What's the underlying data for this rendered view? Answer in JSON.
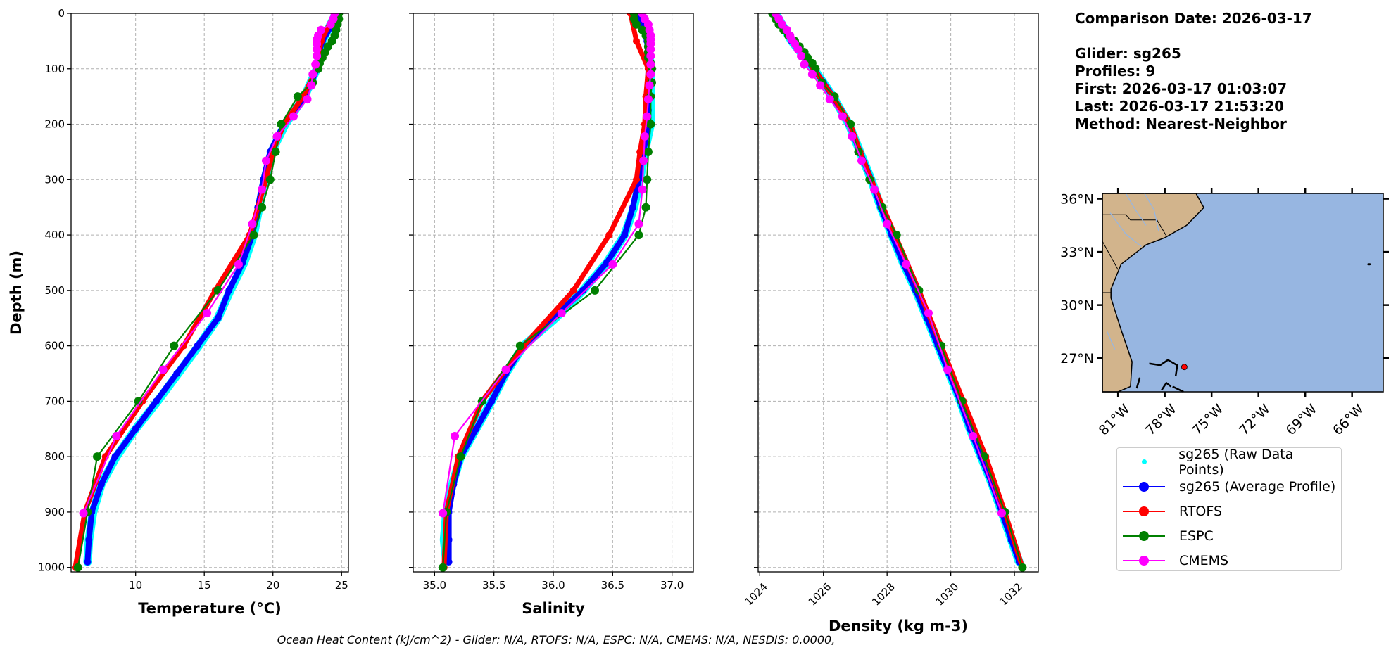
{
  "info": {
    "comparison_date": "Comparison Date: 2026-03-17",
    "glider": "Glider: sg265",
    "profiles": "Profiles: 9",
    "first": "First: 2026-03-17 01:03:07",
    "last": "Last: 2026-03-17 21:53:20",
    "method": "Method: Nearest-Neighbor"
  },
  "footer": "Ocean Heat Content (kJ/cm^2) - Glider: N/A,  RTOFS: N/A,  ESPC: N/A,  CMEMS: N/A,  NESDIS: 0.0000,",
  "legend": [
    {
      "label": "sg265 (Raw Data Points)",
      "color": "#00ffff",
      "style": "point"
    },
    {
      "label": "sg265 (Average Profile)",
      "color": "#0000ff",
      "style": "line-marker"
    },
    {
      "label": "RTOFS",
      "color": "#ff0000",
      "style": "line-marker"
    },
    {
      "label": "ESPC",
      "color": "#008000",
      "style": "line-marker"
    },
    {
      "label": "CMEMS",
      "color": "#ff00ff",
      "style": "line-marker"
    }
  ],
  "map": {
    "lat_ticks": [
      "36°N",
      "33°N",
      "30°N",
      "27°N"
    ],
    "lat_values": [
      36,
      33,
      30,
      27
    ],
    "lon_ticks": [
      "81°W",
      "78°W",
      "75°W",
      "72°W",
      "69°W",
      "66°W"
    ],
    "lon_values": [
      -81,
      -78,
      -75,
      -72,
      -69,
      -66
    ],
    "extent": {
      "lon": [
        -82,
        -64
      ],
      "lat": [
        25.1,
        36.3
      ]
    },
    "land_color": "#d2b48c",
    "ocean_color": "#97b6e1",
    "glider_position": {
      "lon": -76.75,
      "lat": 26.5,
      "color": "#ff0000"
    }
  },
  "chart_data": [
    {
      "type": "line",
      "id": "temperature",
      "xlabel": "Temperature (°C)",
      "ylabel": "Depth (m)",
      "xlim": [
        5.3,
        25.5
      ],
      "ylim": [
        1008,
        0
      ],
      "xticks": [
        10,
        15,
        20,
        25
      ],
      "xtick_labels": [
        "10",
        "15",
        "20",
        "25"
      ],
      "yticks": [
        0,
        100,
        200,
        300,
        400,
        500,
        600,
        700,
        800,
        900,
        1000
      ],
      "ytick_labels": [
        "0",
        "100",
        "200",
        "300",
        "400",
        "500",
        "600",
        "700",
        "800",
        "900",
        "1000"
      ],
      "grid": true,
      "series": [
        {
          "name": "sg265 (Raw Data Points)",
          "depth": [
            0,
            50,
            100,
            150,
            200,
            250,
            300,
            350,
            400,
            450,
            500,
            550,
            600,
            650,
            700,
            750,
            800,
            850,
            900,
            950,
            990
          ],
          "values": [
            24.6,
            23.6,
            23.2,
            22.3,
            20.9,
            19.9,
            19.4,
            19.0,
            18.6,
            17.9,
            16.9,
            16.0,
            14.6,
            13.1,
            11.6,
            10.0,
            8.6,
            7.5,
            6.9,
            6.6,
            6.5
          ]
        },
        {
          "name": "sg265 (Average Profile)",
          "depth": [
            0,
            25,
            50,
            75,
            100,
            125,
            150,
            175,
            200,
            250,
            300,
            350,
            400,
            450,
            500,
            550,
            600,
            650,
            700,
            750,
            800,
            850,
            900,
            950,
            990
          ],
          "values": [
            24.5,
            24.2,
            23.6,
            23.3,
            23.2,
            22.8,
            22.3,
            21.6,
            20.8,
            19.8,
            19.3,
            18.9,
            18.5,
            17.8,
            16.8,
            16.0,
            14.5,
            13.0,
            11.5,
            10.0,
            8.5,
            7.5,
            6.8,
            6.6,
            6.5
          ]
        },
        {
          "name": "RTOFS",
          "depth": [
            0,
            50,
            100,
            150,
            200,
            250,
            300,
            400,
            500,
            600,
            700,
            800,
            900,
            1000
          ],
          "values": [
            24.5,
            23.5,
            23.2,
            22.2,
            20.8,
            20.0,
            19.5,
            18.3,
            15.8,
            13.5,
            10.5,
            7.8,
            6.3,
            5.6
          ]
        },
        {
          "name": "ESPC",
          "depth": [
            0,
            10,
            20,
            30,
            40,
            50,
            60,
            70,
            80,
            90,
            100,
            125,
            150,
            200,
            250,
            300,
            350,
            400,
            500,
            600,
            700,
            800,
            900,
            1000
          ],
          "values": [
            24.8,
            24.8,
            24.7,
            24.6,
            24.5,
            24.3,
            24.0,
            23.8,
            23.6,
            23.4,
            23.3,
            22.9,
            21.8,
            20.6,
            20.2,
            19.8,
            19.2,
            18.6,
            16.0,
            12.8,
            10.2,
            7.2,
            6.5,
            5.8
          ]
        },
        {
          "name": "CMEMS",
          "depth": [
            0,
            10,
            20,
            30,
            40,
            47,
            55,
            65,
            77,
            92,
            110,
            130,
            155,
            186,
            222,
            266,
            318,
            380,
            453,
            541,
            643,
            763,
            902
          ],
          "values": [
            24.5,
            24.4,
            24.2,
            23.5,
            23.3,
            23.2,
            23.2,
            23.2,
            23.2,
            23.1,
            22.9,
            22.8,
            22.5,
            21.5,
            20.3,
            19.5,
            19.2,
            18.5,
            17.5,
            15.2,
            12.0,
            8.6,
            6.2
          ]
        }
      ]
    },
    {
      "type": "line",
      "id": "salinity",
      "xlabel": "Salinity",
      "ylabel": "",
      "xlim": [
        34.82,
        37.18
      ],
      "ylim": [
        1008,
        0
      ],
      "xticks": [
        35.0,
        35.5,
        36.0,
        36.5,
        37.0
      ],
      "xtick_labels": [
        "35.0",
        "35.5",
        "36.0",
        "36.5",
        "37.0"
      ],
      "yticks": [
        0,
        100,
        200,
        300,
        400,
        500,
        600,
        700,
        800,
        900,
        1000
      ],
      "grid": true,
      "series": [
        {
          "name": "sg265 (Raw Data Points)",
          "depth": [
            0,
            50,
            100,
            150,
            200,
            250,
            300,
            350,
            400,
            450,
            500,
            550,
            600,
            650,
            700,
            750,
            800,
            850,
            900,
            950,
            990
          ],
          "values": [
            36.74,
            36.8,
            36.82,
            36.82,
            36.82,
            36.77,
            36.73,
            36.68,
            36.6,
            36.45,
            36.25,
            36.02,
            35.75,
            35.6,
            35.48,
            35.35,
            35.22,
            35.15,
            35.1,
            35.08,
            35.1
          ]
        },
        {
          "name": "sg265 (Average Profile)",
          "depth": [
            0,
            25,
            50,
            75,
            100,
            125,
            150,
            175,
            200,
            250,
            300,
            350,
            400,
            450,
            500,
            550,
            600,
            650,
            700,
            750,
            800,
            850,
            900,
            950,
            990
          ],
          "values": [
            36.72,
            36.76,
            36.79,
            36.8,
            36.8,
            36.8,
            36.8,
            36.8,
            36.8,
            36.76,
            36.72,
            36.67,
            36.6,
            36.45,
            36.25,
            36.0,
            35.75,
            35.6,
            35.48,
            35.35,
            35.22,
            35.16,
            35.12,
            35.12,
            35.12
          ]
        },
        {
          "name": "RTOFS",
          "depth": [
            0,
            50,
            100,
            150,
            200,
            250,
            300,
            400,
            500,
            600,
            700,
            800,
            900,
            1000
          ],
          "values": [
            36.65,
            36.7,
            36.8,
            36.78,
            36.77,
            36.73,
            36.7,
            36.47,
            36.17,
            35.75,
            35.4,
            35.2,
            35.1,
            35.08
          ]
        },
        {
          "name": "ESPC",
          "depth": [
            0,
            10,
            20,
            30,
            40,
            50,
            60,
            70,
            80,
            90,
            100,
            125,
            150,
            200,
            250,
            300,
            350,
            400,
            500,
            600,
            700,
            800,
            900,
            1000
          ],
          "values": [
            36.68,
            36.68,
            36.7,
            36.75,
            36.78,
            36.8,
            36.8,
            36.8,
            36.8,
            36.82,
            36.83,
            36.83,
            36.82,
            36.82,
            36.8,
            36.79,
            36.78,
            36.72,
            36.35,
            35.72,
            35.4,
            35.22,
            35.1,
            35.07
          ]
        },
        {
          "name": "CMEMS",
          "depth": [
            0,
            10,
            20,
            30,
            40,
            47,
            55,
            65,
            77,
            92,
            110,
            130,
            155,
            186,
            222,
            266,
            318,
            380,
            453,
            541,
            643,
            763,
            902
          ],
          "values": [
            36.75,
            36.77,
            36.8,
            36.81,
            36.82,
            36.82,
            36.82,
            36.82,
            36.82,
            36.82,
            36.82,
            36.81,
            36.8,
            36.79,
            36.77,
            36.76,
            36.75,
            36.72,
            36.5,
            36.07,
            35.6,
            35.17,
            35.07
          ]
        }
      ]
    },
    {
      "type": "line",
      "id": "density",
      "xlabel": "Density (kg m-3)",
      "ylabel": "",
      "xlim": [
        1023.95,
        1032.75
      ],
      "ylim": [
        1008,
        0
      ],
      "xticks": [
        1024,
        1026,
        1028,
        1030,
        1032
      ],
      "xtick_labels": [
        "1024",
        "1026",
        "1028",
        "1030",
        "1032"
      ],
      "yticks": [
        0,
        100,
        200,
        300,
        400,
        500,
        600,
        700,
        800,
        900,
        1000
      ],
      "grid": true,
      "series": [
        {
          "name": "sg265 (Raw Data Points)",
          "depth": [
            0,
            50,
            100,
            150,
            200,
            250,
            300,
            350,
            400,
            450,
            500,
            550,
            600,
            650,
            700,
            750,
            800,
            850,
            900,
            950,
            990
          ],
          "values": [
            1024.5,
            1025.0,
            1025.7,
            1026.3,
            1026.8,
            1027.15,
            1027.5,
            1027.8,
            1028.15,
            1028.5,
            1028.9,
            1029.25,
            1029.6,
            1029.95,
            1030.3,
            1030.6,
            1030.95,
            1031.3,
            1031.6,
            1031.9,
            1032.15
          ]
        },
        {
          "name": "sg265 (Average Profile)",
          "depth": [
            0,
            25,
            50,
            75,
            100,
            125,
            150,
            175,
            200,
            250,
            300,
            350,
            400,
            450,
            500,
            550,
            600,
            650,
            700,
            750,
            800,
            850,
            900,
            950,
            990
          ],
          "values": [
            1024.5,
            1024.75,
            1025.0,
            1025.35,
            1025.7,
            1026.0,
            1026.3,
            1026.55,
            1026.8,
            1027.15,
            1027.5,
            1027.8,
            1028.15,
            1028.5,
            1028.9,
            1029.25,
            1029.6,
            1029.95,
            1030.3,
            1030.6,
            1030.95,
            1031.3,
            1031.6,
            1031.9,
            1032.15
          ]
        },
        {
          "name": "RTOFS",
          "depth": [
            0,
            50,
            100,
            150,
            200,
            250,
            300,
            400,
            500,
            600,
            700,
            800,
            900,
            1000
          ],
          "values": [
            1024.5,
            1025.05,
            1025.7,
            1026.3,
            1026.85,
            1027.15,
            1027.5,
            1028.25,
            1029.0,
            1029.7,
            1030.4,
            1031.1,
            1031.7,
            1032.25
          ]
        },
        {
          "name": "ESPC",
          "depth": [
            0,
            10,
            20,
            30,
            40,
            50,
            60,
            70,
            80,
            90,
            100,
            125,
            150,
            200,
            250,
            300,
            350,
            400,
            500,
            600,
            700,
            800,
            900,
            1000
          ],
          "values": [
            1024.4,
            1024.5,
            1024.6,
            1024.75,
            1024.9,
            1025.1,
            1025.25,
            1025.4,
            1025.5,
            1025.65,
            1025.75,
            1025.95,
            1026.35,
            1026.85,
            1027.1,
            1027.45,
            1027.85,
            1028.3,
            1029.0,
            1029.7,
            1030.35,
            1031.05,
            1031.7,
            1032.25
          ]
        },
        {
          "name": "CMEMS",
          "depth": [
            0,
            10,
            20,
            30,
            40,
            47,
            55,
            65,
            77,
            92,
            110,
            130,
            155,
            186,
            222,
            266,
            318,
            380,
            453,
            541,
            643,
            763,
            902
          ],
          "values": [
            1024.5,
            1024.6,
            1024.7,
            1024.85,
            1024.95,
            1025.0,
            1025.1,
            1025.2,
            1025.3,
            1025.4,
            1025.65,
            1025.9,
            1026.2,
            1026.6,
            1026.9,
            1027.2,
            1027.6,
            1028.0,
            1028.6,
            1029.3,
            1029.9,
            1030.7,
            1031.6
          ]
        }
      ]
    }
  ]
}
